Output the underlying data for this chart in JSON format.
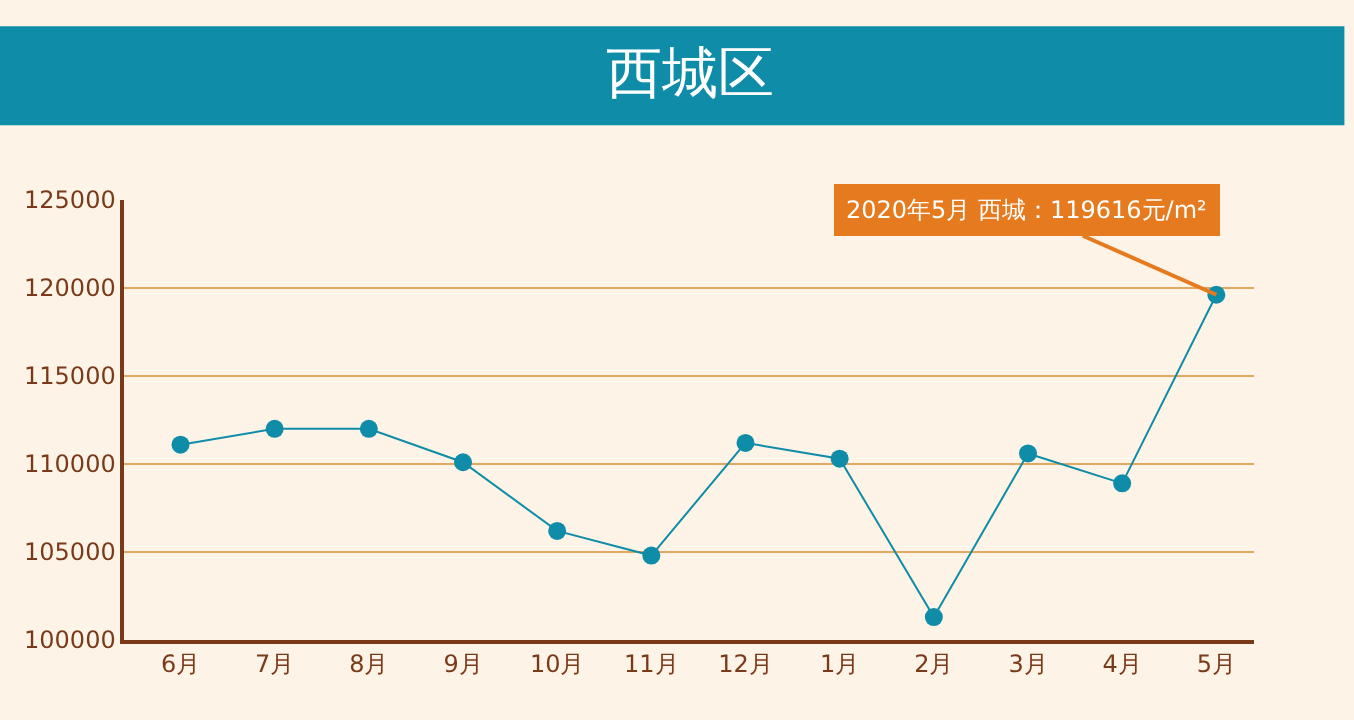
{
  "chart_data": {
    "type": "line",
    "title": "西城区",
    "categories": [
      "6月",
      "7月",
      "8月",
      "9月",
      "10月",
      "11月",
      "12月",
      "1月",
      "2月",
      "3月",
      "4月",
      "5月"
    ],
    "series": [
      {
        "color": "#0e8ca8",
        "values": [
          111100,
          112000,
          112000,
          110100,
          106200,
          104800,
          111200,
          110300,
          101300,
          110600,
          108900,
          119616
        ]
      }
    ],
    "ylim": [
      100000,
      125000
    ],
    "yticks": [
      100000,
      105000,
      110000,
      115000,
      120000,
      125000
    ],
    "grid": "y",
    "marker": "circle",
    "line_style": "solid",
    "annotations": [
      {
        "text": "2020年5月 西城：119616元/m²",
        "x": "5月",
        "y": 119616
      }
    ]
  }
}
